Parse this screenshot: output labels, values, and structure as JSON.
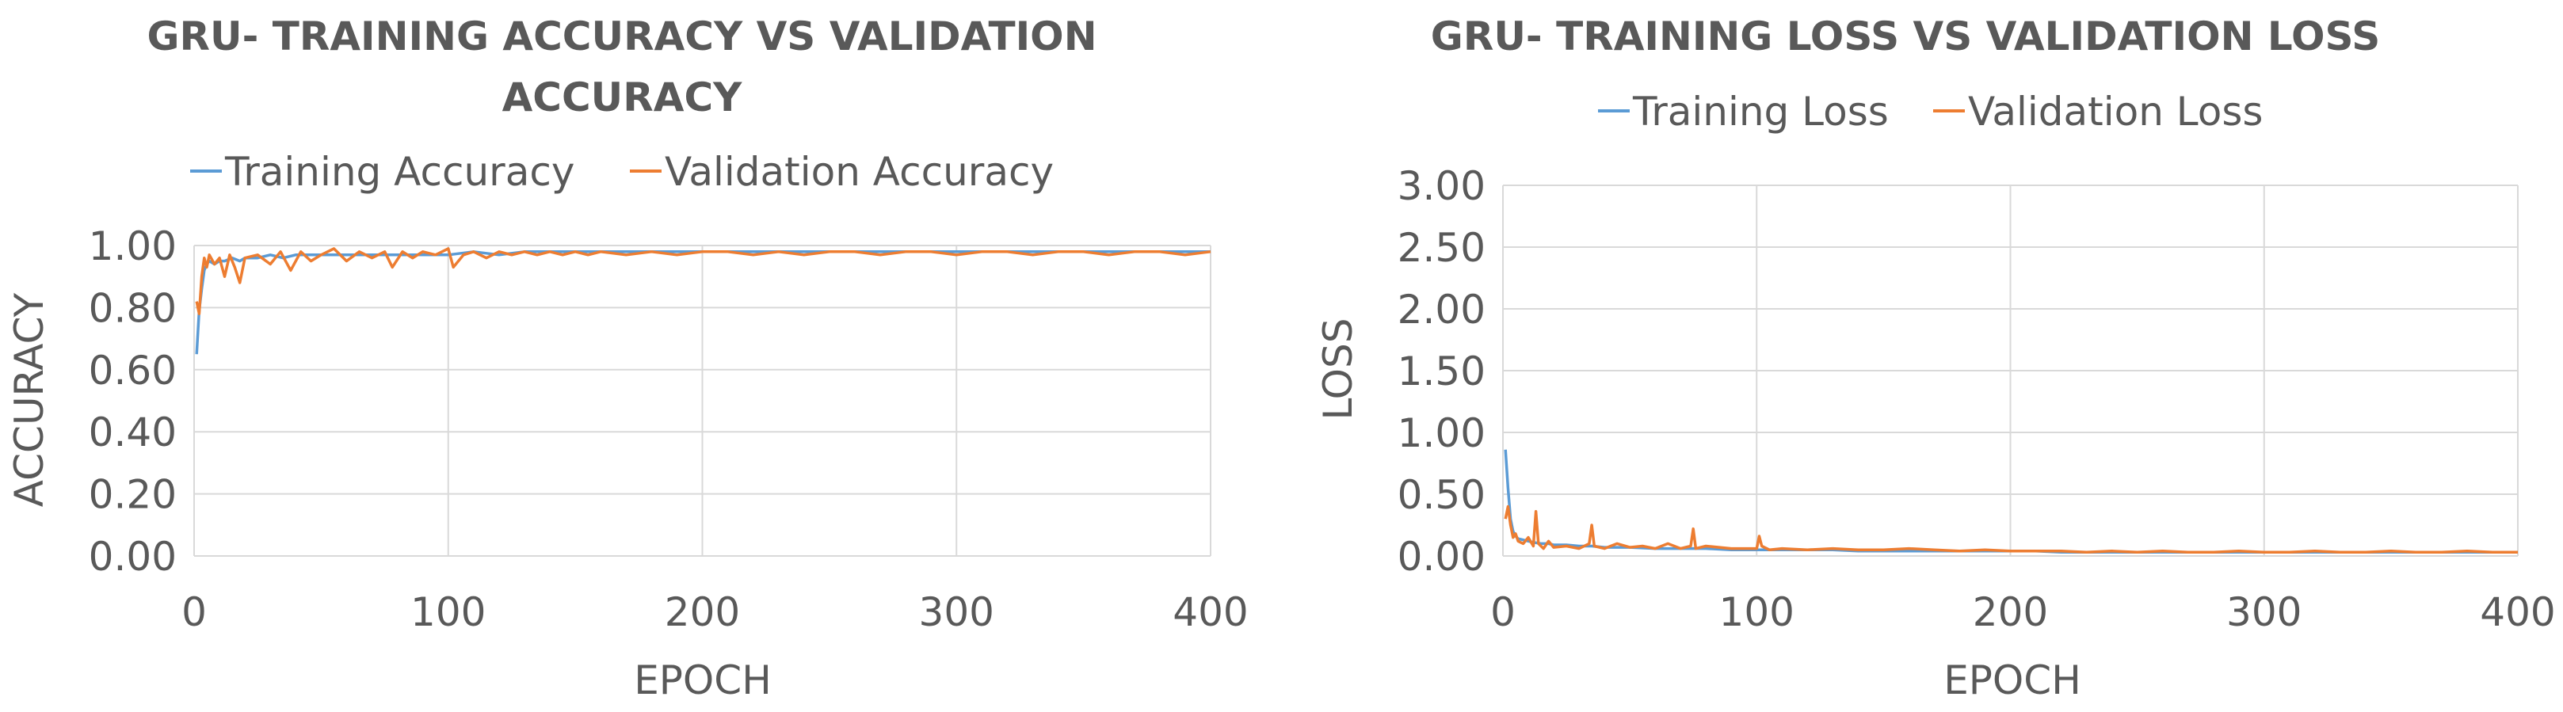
{
  "chart_data": [
    {
      "type": "line",
      "title_lines": [
        "GRU- TRAINING ACCURACY VS VALIDATION",
        "ACCURACY"
      ],
      "xlabel": "EPOCH",
      "ylabel": "ACCURACY",
      "xlim": [
        0,
        400
      ],
      "ylim": [
        0,
        1
      ],
      "x_ticks": [
        0,
        100,
        200,
        300,
        400
      ],
      "y_ticks": [
        0,
        0.2,
        0.4,
        0.6,
        0.8,
        1.0
      ],
      "x_tick_labels": [
        "0",
        "100",
        "200",
        "300",
        "400"
      ],
      "y_tick_labels": [
        "0.00",
        "0.20",
        "0.40",
        "0.60",
        "0.80",
        "1.00"
      ],
      "grid": true,
      "legend_position": "top",
      "series": [
        {
          "name": "Training Accuracy",
          "color": "#5b9bd5",
          "x": [
            1,
            2,
            3,
            4,
            5,
            6,
            8,
            10,
            12,
            15,
            18,
            20,
            25,
            30,
            35,
            40,
            45,
            50,
            60,
            70,
            80,
            90,
            100,
            110,
            120,
            130,
            140,
            150,
            160,
            170,
            180,
            190,
            200,
            210,
            220,
            230,
            240,
            250,
            260,
            270,
            280,
            290,
            300,
            310,
            320,
            330,
            340,
            350,
            360,
            370,
            380,
            390,
            400
          ],
          "values": [
            0.65,
            0.79,
            0.86,
            0.92,
            0.94,
            0.95,
            0.94,
            0.95,
            0.95,
            0.96,
            0.95,
            0.96,
            0.96,
            0.97,
            0.96,
            0.97,
            0.97,
            0.97,
            0.97,
            0.97,
            0.97,
            0.97,
            0.97,
            0.98,
            0.97,
            0.98,
            0.98,
            0.98,
            0.98,
            0.98,
            0.98,
            0.98,
            0.98,
            0.98,
            0.98,
            0.98,
            0.98,
            0.98,
            0.98,
            0.98,
            0.98,
            0.98,
            0.98,
            0.98,
            0.98,
            0.98,
            0.98,
            0.98,
            0.98,
            0.98,
            0.98,
            0.98,
            0.98
          ]
        },
        {
          "name": "Validation Accuracy",
          "color": "#ed7d31",
          "x": [
            1,
            2,
            3,
            4,
            5,
            6,
            8,
            10,
            12,
            14,
            16,
            18,
            20,
            25,
            30,
            34,
            38,
            42,
            46,
            50,
            55,
            60,
            65,
            70,
            75,
            78,
            82,
            86,
            90,
            95,
            100,
            102,
            106,
            110,
            115,
            120,
            125,
            130,
            135,
            140,
            145,
            150,
            155,
            160,
            170,
            180,
            190,
            200,
            210,
            220,
            230,
            240,
            250,
            260,
            270,
            280,
            290,
            300,
            310,
            320,
            330,
            340,
            350,
            360,
            370,
            380,
            390,
            400
          ],
          "values": [
            0.82,
            0.78,
            0.9,
            0.96,
            0.93,
            0.97,
            0.94,
            0.96,
            0.9,
            0.97,
            0.93,
            0.88,
            0.96,
            0.97,
            0.94,
            0.98,
            0.92,
            0.98,
            0.95,
            0.97,
            0.99,
            0.95,
            0.98,
            0.96,
            0.98,
            0.93,
            0.98,
            0.96,
            0.98,
            0.97,
            0.99,
            0.93,
            0.97,
            0.98,
            0.96,
            0.98,
            0.97,
            0.98,
            0.97,
            0.98,
            0.97,
            0.98,
            0.97,
            0.98,
            0.97,
            0.98,
            0.97,
            0.98,
            0.98,
            0.97,
            0.98,
            0.97,
            0.98,
            0.98,
            0.97,
            0.98,
            0.98,
            0.97,
            0.98,
            0.98,
            0.97,
            0.98,
            0.98,
            0.97,
            0.98,
            0.98,
            0.97,
            0.98
          ]
        }
      ]
    },
    {
      "type": "line",
      "title_lines": [
        "GRU- TRAINING LOSS VS VALIDATION LOSS"
      ],
      "xlabel": "EPOCH",
      "ylabel": "LOSS",
      "xlim": [
        0,
        400
      ],
      "ylim": [
        0,
        3
      ],
      "x_ticks": [
        0,
        100,
        200,
        300,
        400
      ],
      "y_ticks": [
        0,
        0.5,
        1.0,
        1.5,
        2.0,
        2.5,
        3.0
      ],
      "x_tick_labels": [
        "0",
        "100",
        "200",
        "300",
        "400"
      ],
      "y_tick_labels": [
        "0.00",
        "0.50",
        "1.00",
        "1.50",
        "2.00",
        "2.50",
        "3.00"
      ],
      "grid": true,
      "legend_position": "top",
      "series": [
        {
          "name": "Training Loss",
          "color": "#5b9bd5",
          "x": [
            1,
            2,
            3,
            4,
            5,
            6,
            8,
            10,
            12,
            15,
            18,
            20,
            25,
            30,
            35,
            40,
            45,
            50,
            60,
            70,
            80,
            90,
            100,
            110,
            120,
            130,
            140,
            150,
            160,
            170,
            180,
            190,
            200,
            210,
            220,
            230,
            240,
            250,
            260,
            270,
            280,
            290,
            300,
            310,
            320,
            330,
            340,
            350,
            360,
            370,
            380,
            390,
            400
          ],
          "values": [
            0.86,
            0.55,
            0.3,
            0.2,
            0.16,
            0.14,
            0.13,
            0.12,
            0.11,
            0.1,
            0.1,
            0.09,
            0.09,
            0.08,
            0.08,
            0.07,
            0.07,
            0.07,
            0.06,
            0.06,
            0.06,
            0.05,
            0.05,
            0.05,
            0.05,
            0.05,
            0.04,
            0.04,
            0.04,
            0.04,
            0.04,
            0.04,
            0.04,
            0.04,
            0.03,
            0.03,
            0.03,
            0.03,
            0.03,
            0.03,
            0.03,
            0.03,
            0.03,
            0.03,
            0.03,
            0.03,
            0.03,
            0.03,
            0.03,
            0.03,
            0.03,
            0.03,
            0.03
          ]
        },
        {
          "name": "Validation Loss",
          "color": "#ed7d31",
          "x": [
            1,
            2,
            3,
            4,
            5,
            6,
            8,
            10,
            12,
            13,
            14,
            16,
            18,
            20,
            25,
            30,
            34,
            35,
            36,
            40,
            45,
            50,
            55,
            60,
            65,
            70,
            74,
            75,
            76,
            80,
            90,
            100,
            101,
            102,
            105,
            110,
            120,
            130,
            140,
            150,
            160,
            170,
            180,
            190,
            200,
            210,
            220,
            230,
            240,
            250,
            260,
            270,
            280,
            290,
            300,
            310,
            320,
            330,
            340,
            350,
            360,
            370,
            380,
            390,
            400
          ],
          "values": [
            0.3,
            0.4,
            0.25,
            0.15,
            0.18,
            0.12,
            0.1,
            0.15,
            0.08,
            0.36,
            0.1,
            0.06,
            0.12,
            0.07,
            0.08,
            0.06,
            0.1,
            0.25,
            0.08,
            0.06,
            0.1,
            0.07,
            0.08,
            0.06,
            0.1,
            0.06,
            0.08,
            0.22,
            0.06,
            0.08,
            0.06,
            0.06,
            0.16,
            0.08,
            0.05,
            0.06,
            0.05,
            0.06,
            0.05,
            0.05,
            0.06,
            0.05,
            0.04,
            0.05,
            0.04,
            0.04,
            0.04,
            0.03,
            0.04,
            0.03,
            0.04,
            0.03,
            0.03,
            0.04,
            0.03,
            0.03,
            0.04,
            0.03,
            0.03,
            0.04,
            0.03,
            0.03,
            0.04,
            0.03,
            0.03
          ]
        }
      ]
    }
  ]
}
